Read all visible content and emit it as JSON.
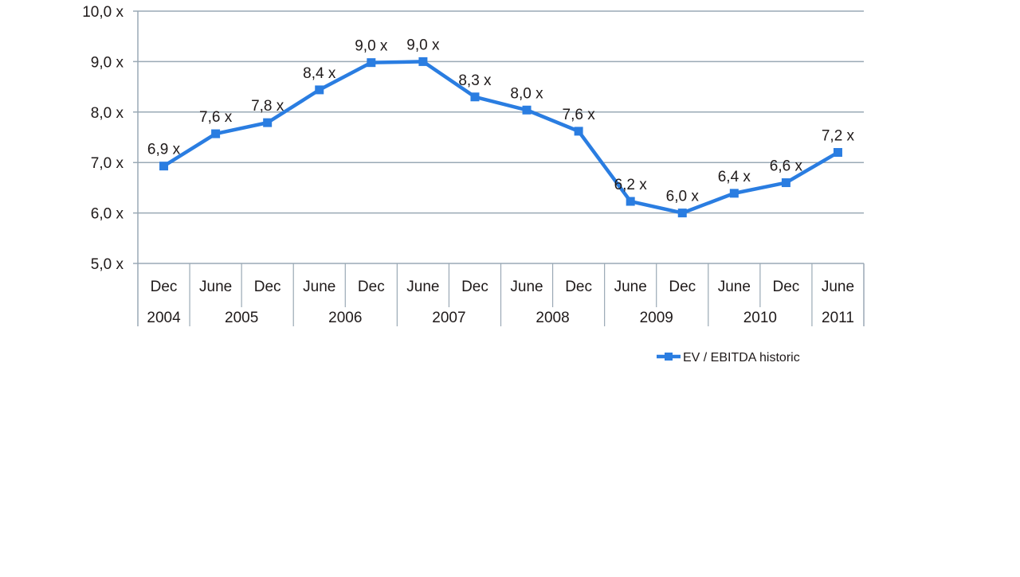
{
  "chart_data": {
    "type": "line",
    "title": "",
    "xlabel": "",
    "ylabel": "",
    "ylim": [
      5.0,
      10.0
    ],
    "yticks": [
      5.0,
      6.0,
      7.0,
      8.0,
      9.0,
      10.0
    ],
    "ytick_labels": [
      "5,0 x",
      "6,0 x",
      "7,0 x",
      "8,0 x",
      "9,0 x",
      "10,0 x"
    ],
    "grid": true,
    "legend_position": "bottom-right",
    "categories": [
      "Dec",
      "June",
      "Dec",
      "June",
      "Dec",
      "June",
      "Dec",
      "June",
      "Dec",
      "June",
      "Dec",
      "June",
      "Dec",
      "June"
    ],
    "year_groups": [
      {
        "label": "2004",
        "span": 1
      },
      {
        "label": "2005",
        "span": 2
      },
      {
        "label": "2006",
        "span": 2
      },
      {
        "label": "2007",
        "span": 2
      },
      {
        "label": "2008",
        "span": 2
      },
      {
        "label": "2009",
        "span": 2
      },
      {
        "label": "2010",
        "span": 2
      },
      {
        "label": "2011",
        "span": 1
      }
    ],
    "series": [
      {
        "name": "EV / EBITDA historic",
        "color": "#2a7de1",
        "values": [
          6.93,
          7.57,
          7.79,
          8.44,
          8.98,
          9.0,
          8.3,
          8.04,
          7.62,
          6.23,
          6.0,
          6.39,
          6.6,
          7.2
        ],
        "data_labels": [
          "6,9 x",
          "7,6 x",
          "7,8 x",
          "8,4 x",
          "9,0 x",
          "9,0 x",
          "8,3 x",
          "8,0 x",
          "7,6 x",
          "6,2 x",
          "6,0 x",
          "6,4 x",
          "6,6 x",
          "7,2 x"
        ]
      }
    ]
  }
}
